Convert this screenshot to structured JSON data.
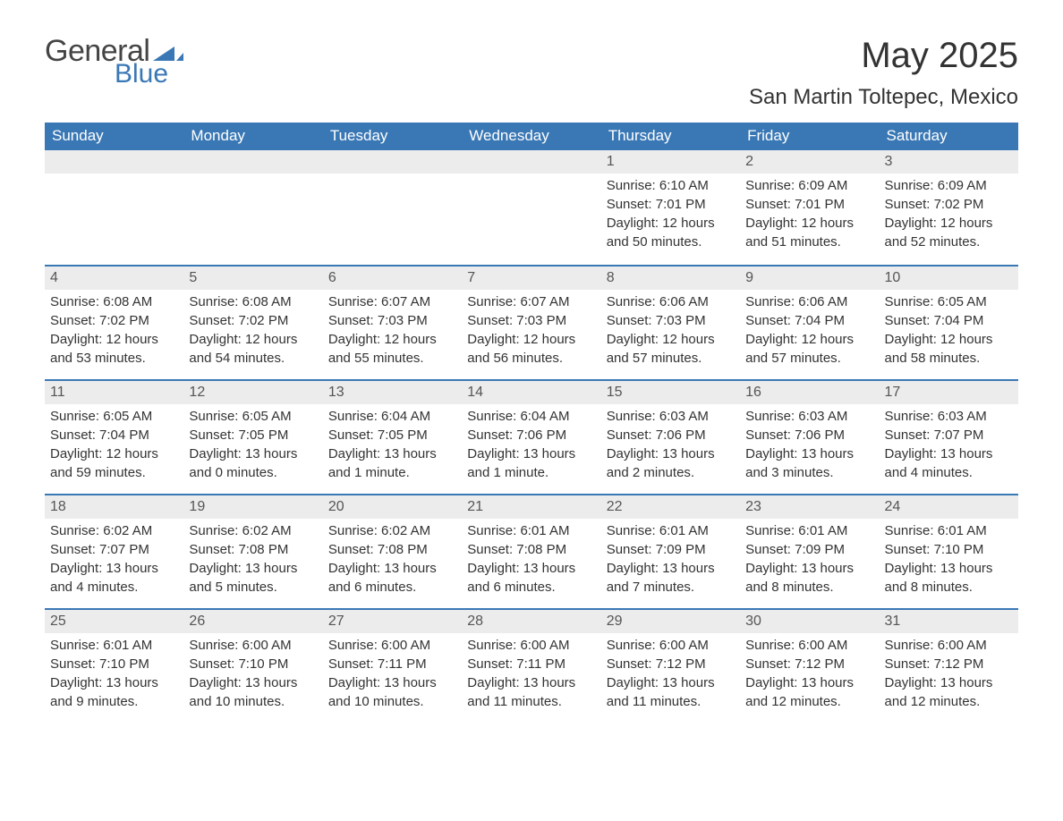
{
  "logo": {
    "text_general": "General",
    "text_blue": "Blue",
    "triangle_color": "#3a78b5"
  },
  "title": "May 2025",
  "location": "San Martin Toltepec, Mexico",
  "colors": {
    "header_bg": "#3a78b5",
    "header_text": "#ffffff",
    "daynum_bg": "#ececec",
    "body_text": "#333333",
    "divider": "#3a78b5",
    "page_bg": "#ffffff"
  },
  "typography": {
    "title_fontsize": 40,
    "location_fontsize": 24,
    "weekday_fontsize": 17,
    "body_fontsize": 15
  },
  "weekdays": [
    "Sunday",
    "Monday",
    "Tuesday",
    "Wednesday",
    "Thursday",
    "Friday",
    "Saturday"
  ],
  "weeks": [
    [
      null,
      null,
      null,
      null,
      {
        "d": "1",
        "sr": "Sunrise: 6:10 AM",
        "ss": "Sunset: 7:01 PM",
        "dl1": "Daylight: 12 hours",
        "dl2": "and 50 minutes."
      },
      {
        "d": "2",
        "sr": "Sunrise: 6:09 AM",
        "ss": "Sunset: 7:01 PM",
        "dl1": "Daylight: 12 hours",
        "dl2": "and 51 minutes."
      },
      {
        "d": "3",
        "sr": "Sunrise: 6:09 AM",
        "ss": "Sunset: 7:02 PM",
        "dl1": "Daylight: 12 hours",
        "dl2": "and 52 minutes."
      }
    ],
    [
      {
        "d": "4",
        "sr": "Sunrise: 6:08 AM",
        "ss": "Sunset: 7:02 PM",
        "dl1": "Daylight: 12 hours",
        "dl2": "and 53 minutes."
      },
      {
        "d": "5",
        "sr": "Sunrise: 6:08 AM",
        "ss": "Sunset: 7:02 PM",
        "dl1": "Daylight: 12 hours",
        "dl2": "and 54 minutes."
      },
      {
        "d": "6",
        "sr": "Sunrise: 6:07 AM",
        "ss": "Sunset: 7:03 PM",
        "dl1": "Daylight: 12 hours",
        "dl2": "and 55 minutes."
      },
      {
        "d": "7",
        "sr": "Sunrise: 6:07 AM",
        "ss": "Sunset: 7:03 PM",
        "dl1": "Daylight: 12 hours",
        "dl2": "and 56 minutes."
      },
      {
        "d": "8",
        "sr": "Sunrise: 6:06 AM",
        "ss": "Sunset: 7:03 PM",
        "dl1": "Daylight: 12 hours",
        "dl2": "and 57 minutes."
      },
      {
        "d": "9",
        "sr": "Sunrise: 6:06 AM",
        "ss": "Sunset: 7:04 PM",
        "dl1": "Daylight: 12 hours",
        "dl2": "and 57 minutes."
      },
      {
        "d": "10",
        "sr": "Sunrise: 6:05 AM",
        "ss": "Sunset: 7:04 PM",
        "dl1": "Daylight: 12 hours",
        "dl2": "and 58 minutes."
      }
    ],
    [
      {
        "d": "11",
        "sr": "Sunrise: 6:05 AM",
        "ss": "Sunset: 7:04 PM",
        "dl1": "Daylight: 12 hours",
        "dl2": "and 59 minutes."
      },
      {
        "d": "12",
        "sr": "Sunrise: 6:05 AM",
        "ss": "Sunset: 7:05 PM",
        "dl1": "Daylight: 13 hours",
        "dl2": "and 0 minutes."
      },
      {
        "d": "13",
        "sr": "Sunrise: 6:04 AM",
        "ss": "Sunset: 7:05 PM",
        "dl1": "Daylight: 13 hours",
        "dl2": "and 1 minute."
      },
      {
        "d": "14",
        "sr": "Sunrise: 6:04 AM",
        "ss": "Sunset: 7:06 PM",
        "dl1": "Daylight: 13 hours",
        "dl2": "and 1 minute."
      },
      {
        "d": "15",
        "sr": "Sunrise: 6:03 AM",
        "ss": "Sunset: 7:06 PM",
        "dl1": "Daylight: 13 hours",
        "dl2": "and 2 minutes."
      },
      {
        "d": "16",
        "sr": "Sunrise: 6:03 AM",
        "ss": "Sunset: 7:06 PM",
        "dl1": "Daylight: 13 hours",
        "dl2": "and 3 minutes."
      },
      {
        "d": "17",
        "sr": "Sunrise: 6:03 AM",
        "ss": "Sunset: 7:07 PM",
        "dl1": "Daylight: 13 hours",
        "dl2": "and 4 minutes."
      }
    ],
    [
      {
        "d": "18",
        "sr": "Sunrise: 6:02 AM",
        "ss": "Sunset: 7:07 PM",
        "dl1": "Daylight: 13 hours",
        "dl2": "and 4 minutes."
      },
      {
        "d": "19",
        "sr": "Sunrise: 6:02 AM",
        "ss": "Sunset: 7:08 PM",
        "dl1": "Daylight: 13 hours",
        "dl2": "and 5 minutes."
      },
      {
        "d": "20",
        "sr": "Sunrise: 6:02 AM",
        "ss": "Sunset: 7:08 PM",
        "dl1": "Daylight: 13 hours",
        "dl2": "and 6 minutes."
      },
      {
        "d": "21",
        "sr": "Sunrise: 6:01 AM",
        "ss": "Sunset: 7:08 PM",
        "dl1": "Daylight: 13 hours",
        "dl2": "and 6 minutes."
      },
      {
        "d": "22",
        "sr": "Sunrise: 6:01 AM",
        "ss": "Sunset: 7:09 PM",
        "dl1": "Daylight: 13 hours",
        "dl2": "and 7 minutes."
      },
      {
        "d": "23",
        "sr": "Sunrise: 6:01 AM",
        "ss": "Sunset: 7:09 PM",
        "dl1": "Daylight: 13 hours",
        "dl2": "and 8 minutes."
      },
      {
        "d": "24",
        "sr": "Sunrise: 6:01 AM",
        "ss": "Sunset: 7:10 PM",
        "dl1": "Daylight: 13 hours",
        "dl2": "and 8 minutes."
      }
    ],
    [
      {
        "d": "25",
        "sr": "Sunrise: 6:01 AM",
        "ss": "Sunset: 7:10 PM",
        "dl1": "Daylight: 13 hours",
        "dl2": "and 9 minutes."
      },
      {
        "d": "26",
        "sr": "Sunrise: 6:00 AM",
        "ss": "Sunset: 7:10 PM",
        "dl1": "Daylight: 13 hours",
        "dl2": "and 10 minutes."
      },
      {
        "d": "27",
        "sr": "Sunrise: 6:00 AM",
        "ss": "Sunset: 7:11 PM",
        "dl1": "Daylight: 13 hours",
        "dl2": "and 10 minutes."
      },
      {
        "d": "28",
        "sr": "Sunrise: 6:00 AM",
        "ss": "Sunset: 7:11 PM",
        "dl1": "Daylight: 13 hours",
        "dl2": "and 11 minutes."
      },
      {
        "d": "29",
        "sr": "Sunrise: 6:00 AM",
        "ss": "Sunset: 7:12 PM",
        "dl1": "Daylight: 13 hours",
        "dl2": "and 11 minutes."
      },
      {
        "d": "30",
        "sr": "Sunrise: 6:00 AM",
        "ss": "Sunset: 7:12 PM",
        "dl1": "Daylight: 13 hours",
        "dl2": "and 12 minutes."
      },
      {
        "d": "31",
        "sr": "Sunrise: 6:00 AM",
        "ss": "Sunset: 7:12 PM",
        "dl1": "Daylight: 13 hours",
        "dl2": "and 12 minutes."
      }
    ]
  ]
}
